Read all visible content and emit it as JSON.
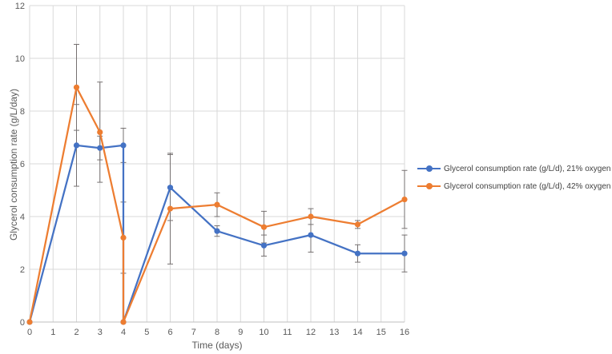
{
  "chart_data": {
    "type": "line",
    "title": "",
    "xlabel": "Time (days)",
    "ylabel": "Glycerol consumption rate (g/L/day)",
    "xlim": [
      0,
      16
    ],
    "ylim": [
      0,
      12
    ],
    "x_ticks": [
      0,
      1,
      2,
      3,
      4,
      5,
      6,
      7,
      8,
      9,
      10,
      11,
      12,
      13,
      14,
      15,
      16
    ],
    "y_ticks": [
      0,
      2,
      4,
      6,
      8,
      10,
      12
    ],
    "grid": "both",
    "legend_position": "right",
    "error_bars": true,
    "series": [
      {
        "name": "Glycerol consumption rate (g/L/d), 21% oxygen",
        "color": "#4472C4",
        "x": [
          0,
          2,
          3,
          4,
          4,
          6,
          8,
          10,
          12,
          14,
          16
        ],
        "y": [
          0,
          6.7,
          6.6,
          6.7,
          0,
          5.1,
          3.45,
          2.9,
          3.3,
          2.6,
          2.6
        ],
        "error": [
          0,
          1.55,
          0.45,
          0.65,
          0,
          1.25,
          0.2,
          0.4,
          0.65,
          0.33,
          0.7
        ]
      },
      {
        "name": "Glycerol consumption rate (g/L/d), 42% oxygen",
        "color": "#ED7D31",
        "x": [
          0,
          2,
          3,
          4,
          4,
          6,
          8,
          10,
          12,
          14,
          16
        ],
        "y": [
          0,
          8.9,
          7.2,
          3.2,
          0,
          4.3,
          4.45,
          3.6,
          4.0,
          3.7,
          4.65
        ],
        "error": [
          0,
          1.63,
          1.9,
          1.35,
          0,
          2.1,
          0.45,
          0.6,
          0.3,
          0.15,
          1.1
        ]
      }
    ],
    "colors": {
      "gridline": "#D9D9D9",
      "axis_line": "#BFBFBF",
      "error_bar": "#767171",
      "tick_text": "#595959",
      "axis_title_text": "#595959",
      "legend_text": "#404040"
    }
  }
}
